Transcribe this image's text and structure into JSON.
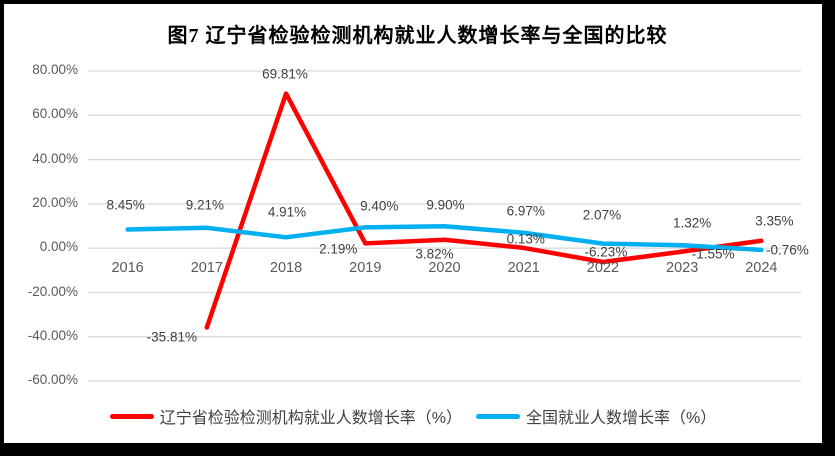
{
  "title": "图7  辽宁省检验检测机构就业人数增长率与全国的比较",
  "chart_data": {
    "type": "line",
    "categories": [
      "2016",
      "2017",
      "2018",
      "2019",
      "2020",
      "2021",
      "2022",
      "2023",
      "2024"
    ],
    "series": [
      {
        "name": "辽宁省检验检测机构就业人数增长率（%）",
        "color": "#FF0000",
        "values": [
          null,
          -35.81,
          69.81,
          2.19,
          3.82,
          0.13,
          -6.23,
          -1.55,
          3.35
        ],
        "point_labels": [
          "",
          "-35.81%",
          "69.81%",
          "2.19%",
          "3.82%",
          "0.13%",
          "-6.23%",
          "-1.55%",
          "3.35%"
        ]
      },
      {
        "name": "全国就业人数增长率（%）",
        "color": "#00B0F0",
        "values": [
          8.45,
          9.21,
          4.91,
          9.4,
          9.9,
          6.97,
          2.07,
          1.32,
          -0.76
        ],
        "point_labels": [
          "8.45%",
          "9.21%",
          "4.91%",
          "9.40%",
          "9.90%",
          "6.97%",
          "2.07%",
          "1.32%",
          "-0.76%"
        ]
      }
    ],
    "y_axis": {
      "min": -60,
      "max": 80,
      "step": 20,
      "tick_values": [
        80,
        60,
        40,
        20,
        0,
        -20,
        -40,
        -60
      ],
      "tick_labels": [
        "80.00%",
        "60.00%",
        "40.00%",
        "20.00%",
        "0.00%",
        "-20.00%",
        "-40.00%",
        "-60.00%"
      ]
    },
    "grid": true,
    "legend_position": "bottom",
    "colors": {
      "gridline": "#D9D9D9",
      "axis_text": "#595959",
      "data_label_text": "#404040",
      "title_text": "#000000",
      "legend_text": "#404040",
      "background": "#FFFFFF",
      "frame_border": "#000000"
    }
  }
}
